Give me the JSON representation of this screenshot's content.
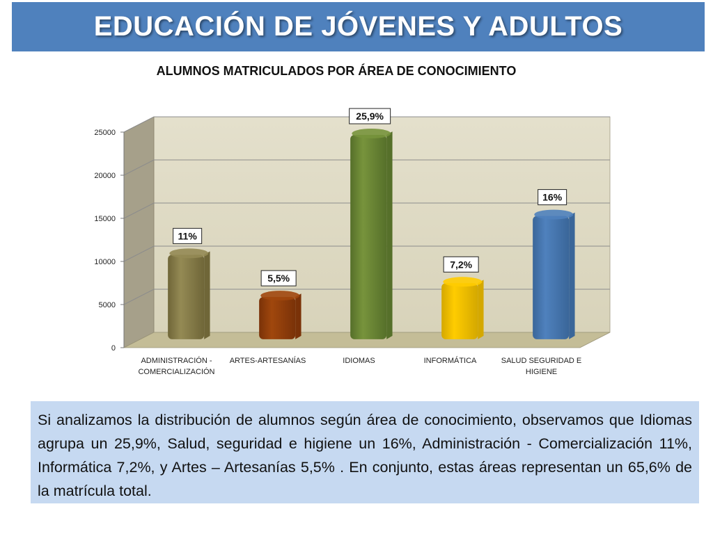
{
  "header": {
    "title": "EDUCACIÓN DE JÓVENES Y ADULTOS"
  },
  "chart_data": {
    "type": "bar",
    "title": "ALUMNOS MATRICULADOS POR ÁREA DE CONOCIMIENTO",
    "xlabel": "",
    "ylabel": "",
    "categories": [
      [
        "ADMINISTRACIÓN -",
        "COMERCIALIZACIÓN"
      ],
      [
        "ARTES-ARTESANÍAS"
      ],
      [
        "IDIOMAS"
      ],
      [
        "INFORMÁTICA"
      ],
      [
        "SALUD SEGURIDAD E",
        "HIGIENE"
      ]
    ],
    "values": [
      9800,
      4900,
      23700,
      6500,
      14300
    ],
    "data_labels": [
      "11%",
      "5,5%",
      "25,9%",
      "7,2%",
      "16%"
    ],
    "ylim": [
      0,
      25000
    ],
    "yticks": [
      0,
      5000,
      10000,
      15000,
      20000,
      25000
    ],
    "grid": true,
    "style": "3d",
    "bar_colors": [
      "#948a54",
      "#a0470d",
      "#77933c",
      "#ffcc00",
      "#4f81bd"
    ],
    "bar_dark_colors": [
      "#6f6638",
      "#7a3208",
      "#56702a",
      "#d4a800",
      "#3a6699"
    ],
    "wall_color": "#ddd9c3",
    "side_wall_color": "#a6a08a",
    "floor_color": "#c4bd97"
  },
  "summary": {
    "text": "Si analizamos la distribución de alumnos según área de conocimiento, observamos que  Idiomas  agrupa un 25,9%, Salud, seguridad e higiene un 16%, Administración - Comercialización 11%, Informática 7,2%, y Artes – Artesanías 5,5% . En conjunto, estas áreas representan un 65,6% de la matrícula total."
  }
}
